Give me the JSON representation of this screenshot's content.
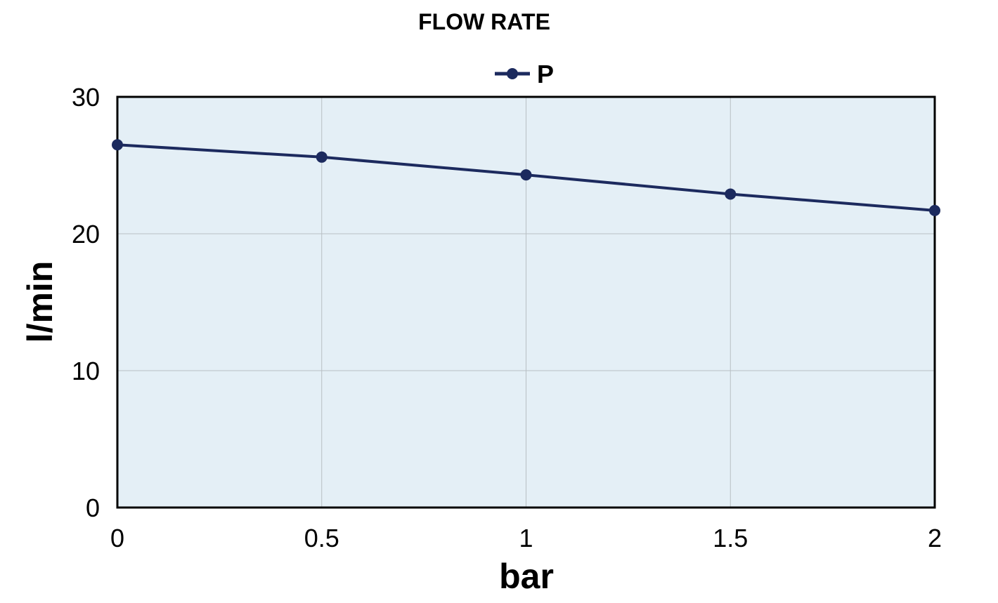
{
  "chart_data": {
    "type": "line",
    "title": "FLOW RATE",
    "xlabel": "bar",
    "ylabel": "l/min",
    "x": [
      0,
      0.5,
      1,
      1.5,
      2
    ],
    "x_tick_labels": [
      "0",
      "0.5",
      "1",
      "1.5",
      "2"
    ],
    "y_tick_labels": [
      "0",
      "10",
      "20",
      "30"
    ],
    "xlim": [
      0,
      2
    ],
    "ylim": [
      0,
      30
    ],
    "grid": true,
    "legend_position": "top-center",
    "series": [
      {
        "name": "P",
        "values": [
          26.5,
          25.6,
          24.3,
          22.9,
          21.7
        ],
        "color": "#1c2a5e"
      }
    ],
    "plot_background": "#e4eff6",
    "grid_color": "#b8bfc4"
  }
}
